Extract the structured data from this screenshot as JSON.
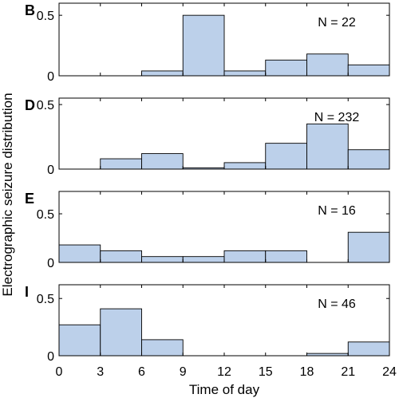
{
  "chart_data": {
    "type": "bar",
    "ylabel": "Electrographic seizure distribution",
    "xlabel": "Time of day",
    "xlim": [
      0,
      24
    ],
    "xticks": [
      "0",
      "3",
      "6",
      "9",
      "12",
      "15",
      "18",
      "21",
      "24"
    ],
    "bar_color": "#bcd0ea",
    "bin_edges": [
      0,
      3,
      6,
      9,
      12,
      15,
      18,
      21,
      24
    ],
    "panels": [
      {
        "label": "B",
        "annotation": "N = 22",
        "ylim": [
          0,
          0.6
        ],
        "yticks": [
          "0",
          "0.5"
        ],
        "values": [
          0,
          0,
          0.04,
          0.5,
          0.04,
          0.13,
          0.18,
          0.09
        ]
      },
      {
        "label": "D",
        "annotation": "N = 232",
        "ylim": [
          0,
          0.55
        ],
        "yticks": [
          "0",
          "0.5"
        ],
        "values": [
          0,
          0.08,
          0.12,
          0.01,
          0.05,
          0.2,
          0.35,
          0.15
        ]
      },
      {
        "label": "E",
        "annotation": "N = 16",
        "ylim": [
          0,
          0.73
        ],
        "yticks": [
          "0",
          "0.5"
        ],
        "values": [
          0.18,
          0.12,
          0.06,
          0.06,
          0.12,
          0.12,
          0,
          0.31
        ]
      },
      {
        "label": "I",
        "annotation": "N = 46",
        "ylim": [
          0,
          0.62
        ],
        "yticks": [
          "0",
          "0.5"
        ],
        "values": [
          0.27,
          0.41,
          0.14,
          0,
          0,
          0,
          0.02,
          0.12
        ]
      }
    ]
  }
}
